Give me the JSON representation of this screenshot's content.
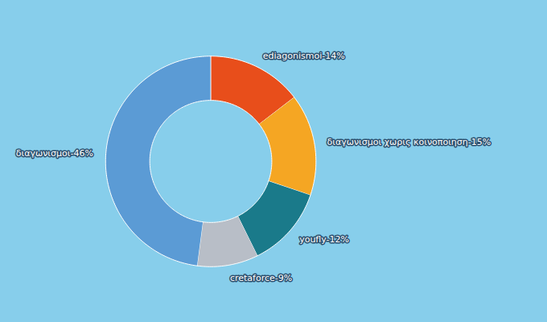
{
  "chart_data": {
    "type": "donut",
    "categories": [
      "ediagonismoi-14%",
      "διαγωνισμοι χωρις κοινοποιηση-15%",
      "youfly-12%",
      "cretaforce-9%",
      "διαγωνισμοι-46%"
    ],
    "values": [
      14,
      15,
      12,
      9,
      46
    ],
    "colors": [
      "#E84E1B",
      "#F5A623",
      "#1A7A8A",
      "#B8BEC7",
      "#5B9BD5"
    ]
  }
}
